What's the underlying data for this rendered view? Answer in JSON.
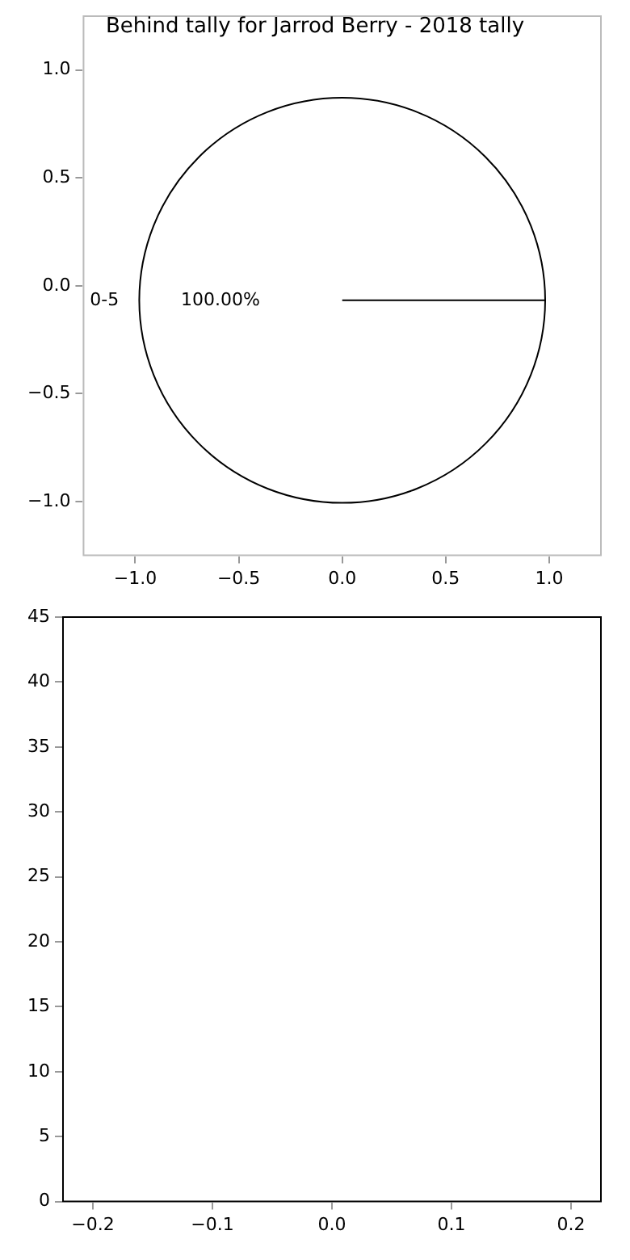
{
  "chart_data": [
    {
      "type": "pie",
      "title": "Behind tally for Jarrod Berry - 2018 tally",
      "categories": [
        "0-5"
      ],
      "values": [
        100
      ],
      "colors": [
        "#ffffff"
      ],
      "value_labels": [
        "100.00%"
      ]
    },
    {
      "type": "scatter",
      "xlim": [
        -1.25,
        1.25
      ],
      "xticks": [
        {
          "value": -1,
          "label": "−1.0"
        },
        {
          "value": -0.5,
          "label": "−0.5"
        },
        {
          "value": 0,
          "label": "0.0"
        },
        {
          "value": 0.5,
          "label": "0.5"
        },
        {
          "value": 1,
          "label": "1.0"
        }
      ],
      "ylim": [
        -1.25,
        1.25
      ],
      "yticks": [
        {
          "value": -1,
          "label": "−1.0"
        },
        {
          "value": -0.5,
          "label": "−0.5"
        },
        {
          "value": 0,
          "label": "0.0"
        },
        {
          "value": 0.5,
          "label": "0.5"
        },
        {
          "value": 1,
          "label": "1.0"
        }
      ]
    },
    {
      "type": "scatter",
      "xlim": [
        -0.225,
        0.225
      ],
      "xticks": [
        {
          "value": -0.2,
          "label": "−0.2"
        },
        {
          "value": -0.1,
          "label": "−0.1"
        },
        {
          "value": 0,
          "label": "0.0"
        },
        {
          "value": 0.1,
          "label": "0.1"
        },
        {
          "value": 0.2,
          "label": "0.2"
        }
      ],
      "ylim": [
        0,
        45
      ],
      "yticks": [
        0,
        5,
        10,
        15,
        20,
        25,
        30,
        35,
        40,
        45
      ]
    }
  ]
}
